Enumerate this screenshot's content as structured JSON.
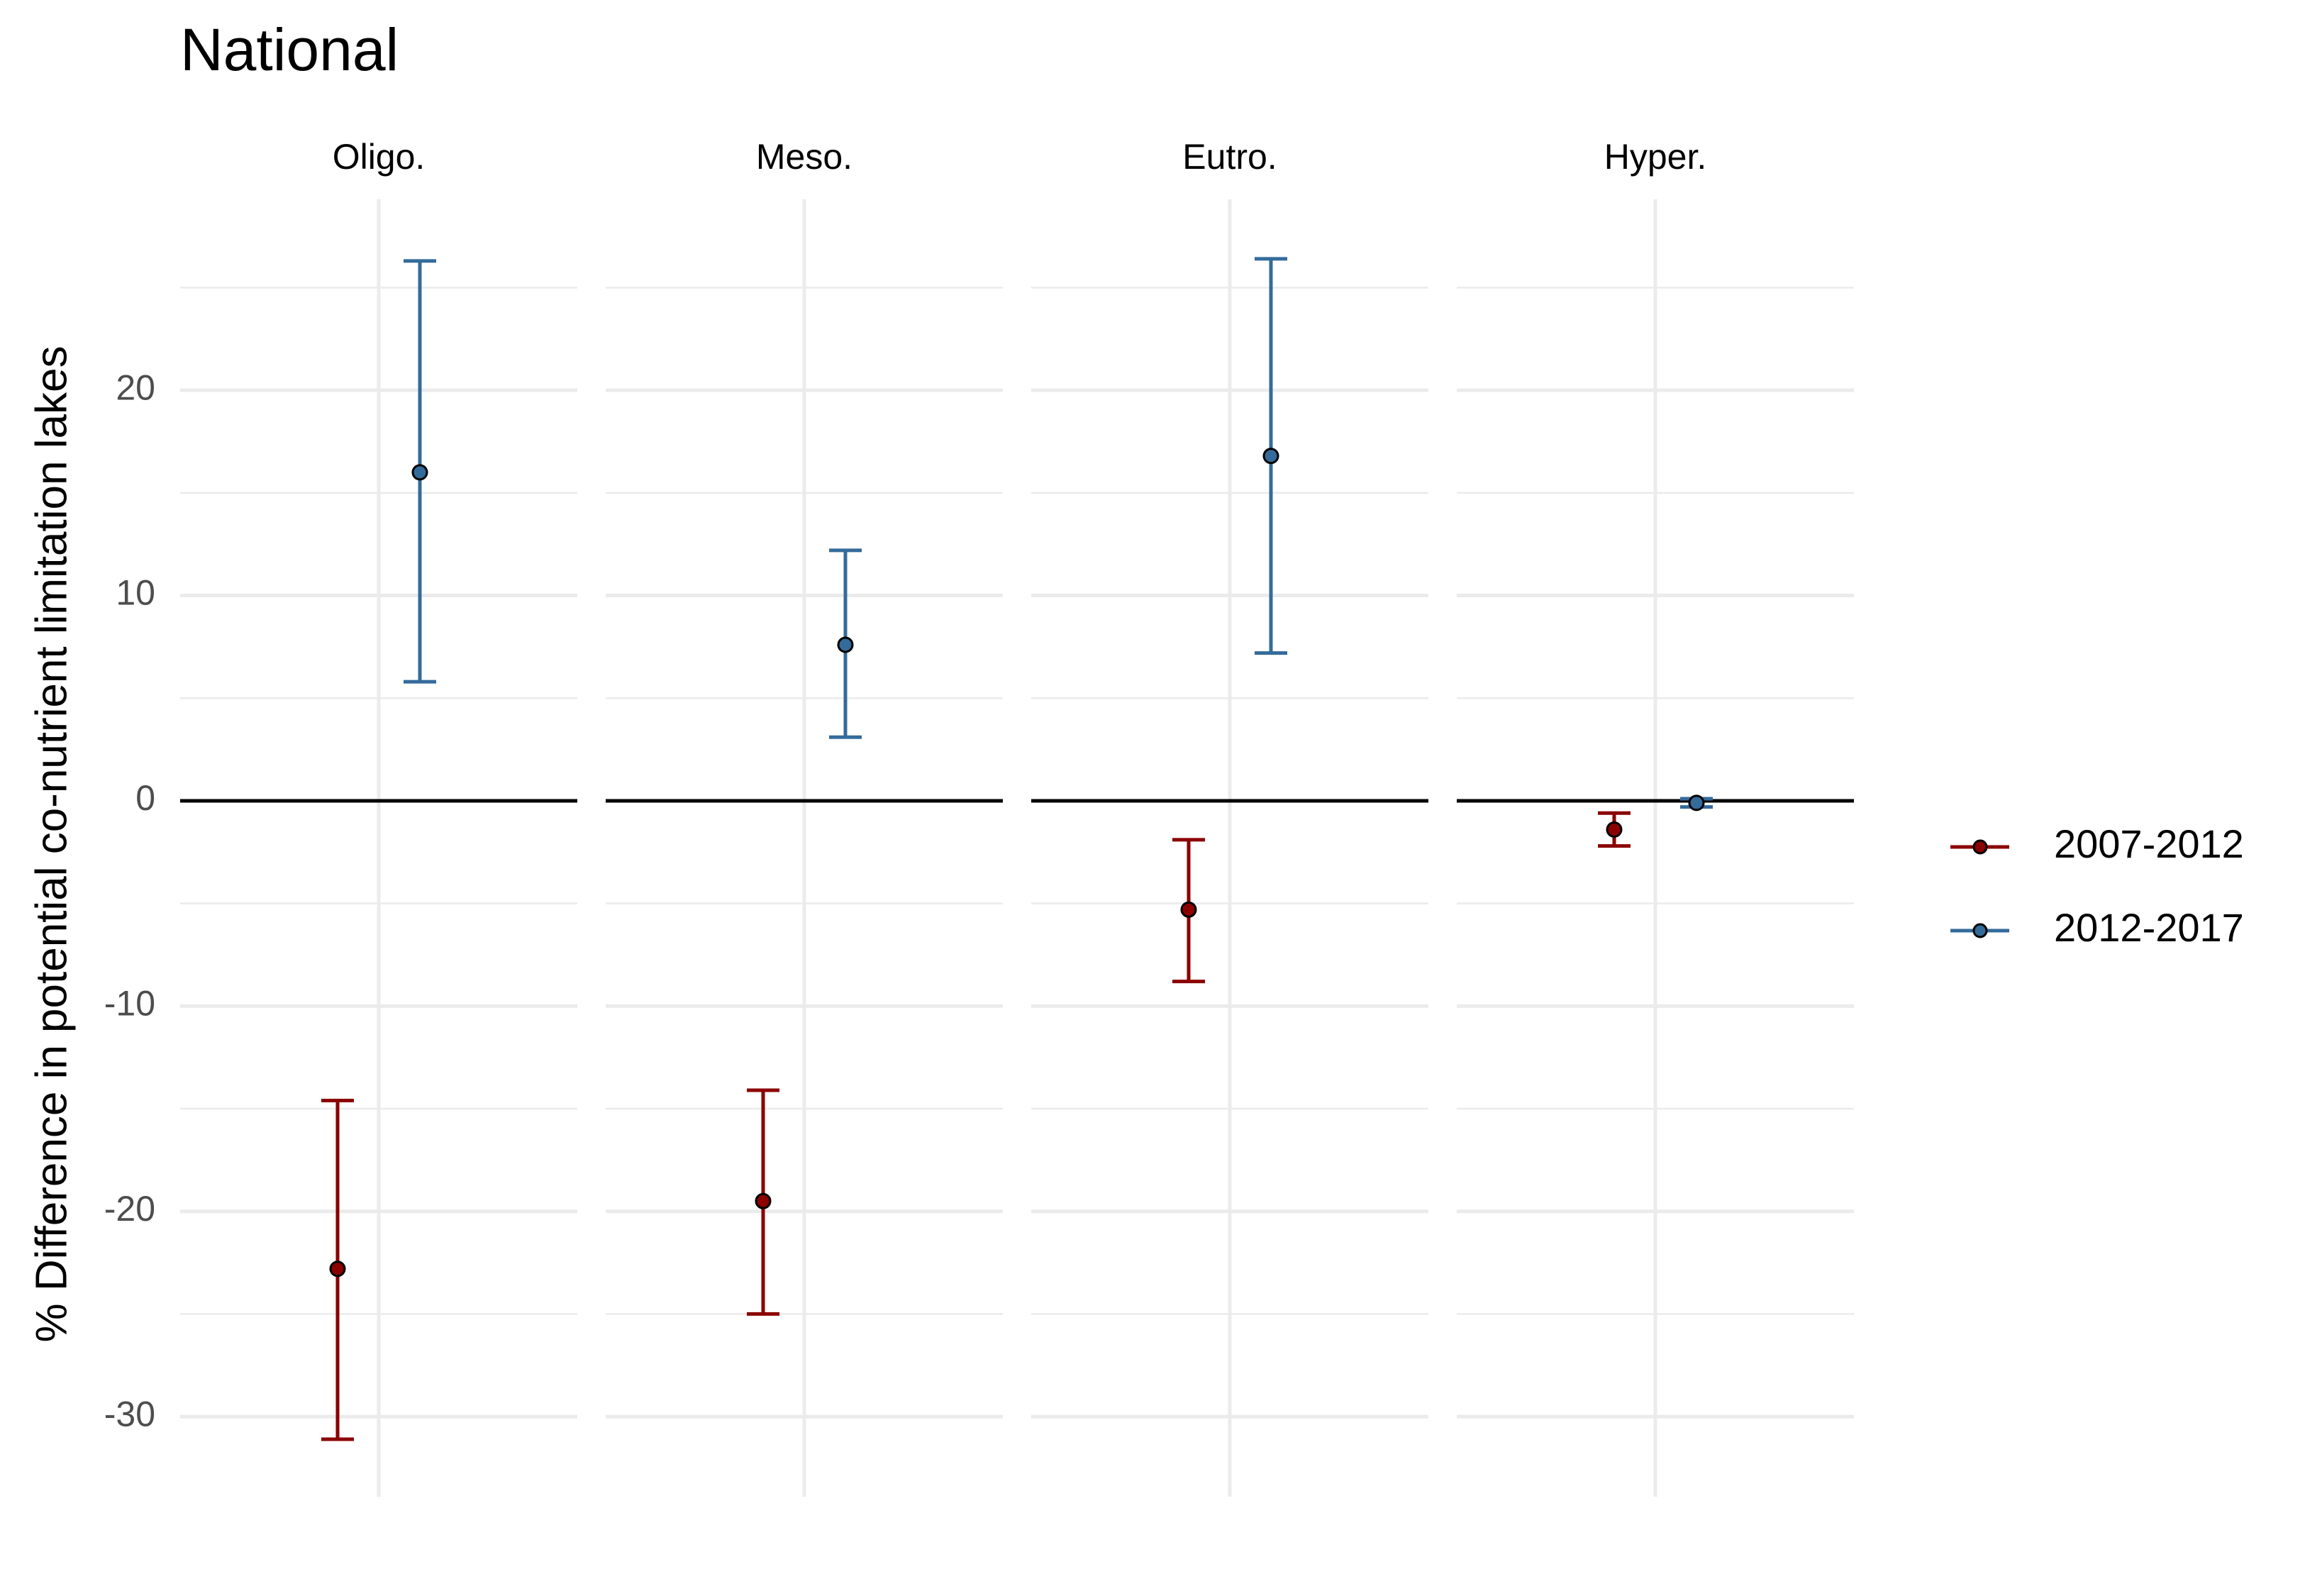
{
  "chart_data": {
    "type": "errorbar",
    "title": "National",
    "y_label": "% Difference in potential co-nutrient limitation lakes",
    "panels": [
      "Oligo.",
      "Meso.",
      "Eutro.",
      "Hyper."
    ],
    "series": [
      {
        "name": "2007-2012",
        "color": "#8b0000",
        "values": [
          -22.8,
          -19.5,
          -5.3,
          -1.4
        ],
        "lower": [
          -31.1,
          -25.0,
          -8.8,
          -2.2
        ],
        "upper": [
          -14.6,
          -14.1,
          -1.9,
          -0.6
        ]
      },
      {
        "name": "2012-2017",
        "color": "#336b9b",
        "values": [
          16.0,
          7.6,
          16.8,
          -0.1
        ],
        "lower": [
          5.8,
          3.1,
          7.2,
          -0.3
        ],
        "upper": [
          26.3,
          12.2,
          26.4,
          0.1
        ]
      }
    ],
    "ylim": [
      -33.9,
      29.3
    ],
    "yticks": [
      -30,
      -20,
      -10,
      0,
      10,
      20
    ],
    "grid": true,
    "reference_line": 0,
    "legend_position": "right"
  }
}
